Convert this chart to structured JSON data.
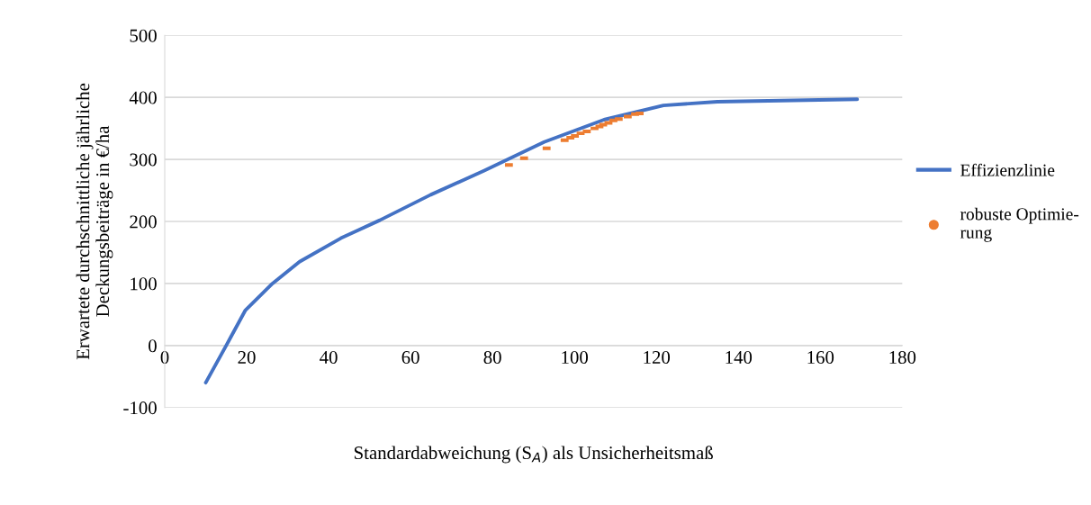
{
  "chart_data": {
    "type": "line",
    "xlabel": "Standardabweichung (S$_{A}$) als Unsicherheitsmaß",
    "ylabel": "Erwartete durchschnittliche jährliche\nDeckungsbeiträge in €/ha",
    "xlim": [
      0,
      180
    ],
    "xticks": [
      0,
      20,
      40,
      60,
      80,
      100,
      120,
      140,
      160,
      180
    ],
    "ylim": [
      -100,
      500
    ],
    "yticks": [
      -100,
      0,
      100,
      200,
      300,
      400,
      500
    ],
    "grid": "y",
    "legend": "right",
    "series": [
      {
        "name": "Effizienzlinie",
        "color": "#4472c4",
        "marker": "none",
        "line_style": "solid",
        "x": [
          10,
          15,
          19.7,
          26.3,
          32.9,
          43,
          52.5,
          64.9,
          78,
          92.6,
          107.2,
          121.7,
          134.9,
          169
        ],
        "values": [
          -60,
          0,
          57,
          100,
          135,
          173,
          202,
          243,
          282,
          328,
          364,
          387,
          393,
          397
        ]
      },
      {
        "name": "robuste Optimie-\nrung",
        "type": "scatter",
        "color": "#ed7d31",
        "marker": "square",
        "x": [
          84.0,
          87.7,
          93.2,
          97.6,
          99.0,
          100.1,
          101.5,
          103.0,
          104.9,
          106.1,
          107.0,
          108.3,
          109.5,
          110.8,
          113.0,
          114.8,
          115.9
        ],
        "values": [
          291,
          302,
          318,
          331,
          335,
          338,
          342,
          345,
          350,
          353,
          356,
          359,
          363,
          365,
          369,
          373,
          374
        ]
      }
    ]
  }
}
